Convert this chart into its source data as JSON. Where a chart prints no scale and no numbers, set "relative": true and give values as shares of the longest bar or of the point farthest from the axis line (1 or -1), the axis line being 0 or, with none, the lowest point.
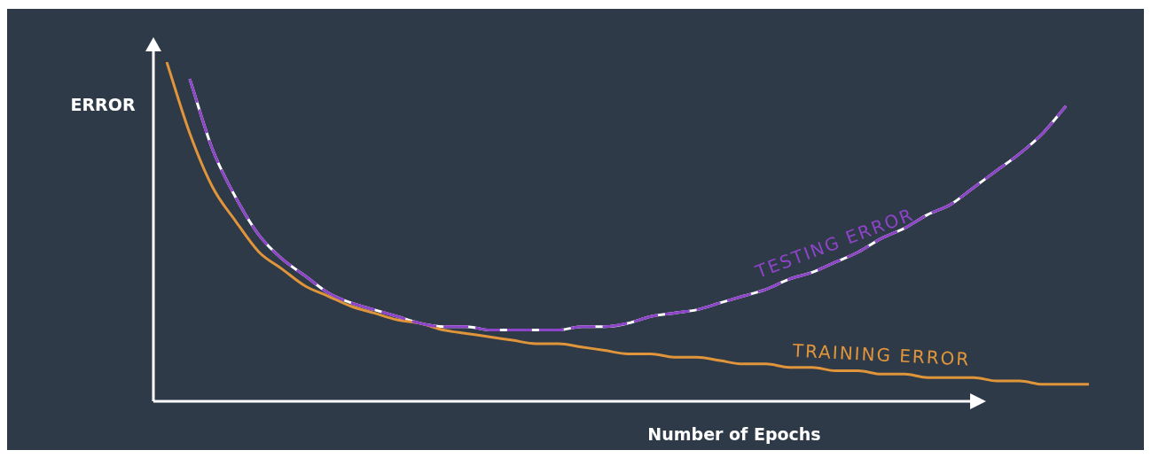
{
  "chart_data": {
    "type": "line",
    "relative": true,
    "ylabel": "ERROR",
    "xlabel": "Number of Epochs",
    "legend": false,
    "marker": "none",
    "categories": [
      null,
      null,
      null,
      null,
      null,
      null,
      null,
      null,
      null,
      null,
      null,
      null,
      null,
      null,
      null,
      null,
      null,
      null,
      null,
      null,
      null,
      null,
      null,
      null,
      null,
      null,
      null,
      null,
      null,
      null,
      null,
      null,
      null,
      null,
      null,
      null,
      null,
      null,
      null,
      null,
      null
    ],
    "series": [
      {
        "name": "TESTING ERROR",
        "color": "#8e44c8",
        "line_style": "dashed",
        "values": [
          null,
          0.95,
          0.74,
          0.6,
          0.49,
          0.42,
          0.37,
          0.32,
          0.29,
          0.27,
          0.25,
          0.23,
          0.22,
          0.22,
          0.21,
          0.21,
          0.21,
          0.21,
          0.22,
          0.22,
          0.23,
          0.25,
          0.26,
          0.27,
          0.29,
          0.31,
          0.33,
          0.36,
          0.38,
          0.41,
          0.44,
          0.48,
          0.51,
          0.55,
          0.58,
          0.63,
          0.68,
          0.73,
          0.79,
          0.87,
          null
        ]
      },
      {
        "name": "TRAINING ERROR",
        "color": "#e0953a",
        "line_style": "solid",
        "values": [
          1,
          0.79,
          0.63,
          0.53,
          0.44,
          0.39,
          0.34,
          0.31,
          0.28,
          0.26,
          0.24,
          0.23,
          0.21,
          0.2,
          0.19,
          0.18,
          0.17,
          0.17,
          0.16,
          0.15,
          0.14,
          0.14,
          0.13,
          0.13,
          0.12,
          0.11,
          0.11,
          0.1,
          0.1,
          0.09,
          0.09,
          0.08,
          0.08,
          0.07,
          0.07,
          0.07,
          0.06,
          0.06,
          0.05,
          0.05,
          0.05
        ]
      }
    ]
  }
}
